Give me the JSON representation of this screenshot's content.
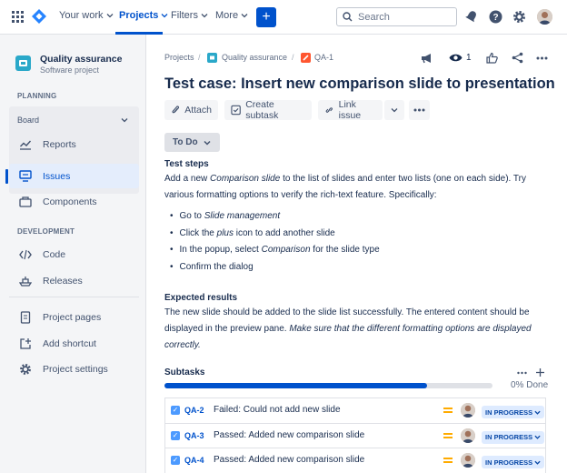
{
  "topnav": {
    "your_work": "Your work",
    "projects": "Projects",
    "filters": "Filters",
    "more": "More",
    "create": "+",
    "search_placeholder": "Search"
  },
  "sidebar": {
    "project_name": "Quality assurance",
    "project_type": "Software project",
    "planning_label": "PLANNING",
    "board_label": "Board",
    "development_label": "DEVELOPMENT",
    "items": [
      {
        "label": "Reports",
        "icon": "chart-line-icon"
      },
      {
        "label": "Issues",
        "icon": "issues-icon",
        "active": true
      },
      {
        "label": "Components",
        "icon": "components-icon"
      },
      {
        "label": "Code",
        "icon": "code-icon"
      },
      {
        "label": "Releases",
        "icon": "ship-icon"
      },
      {
        "label": "Project pages",
        "icon": "page-icon"
      },
      {
        "label": "Add shortcut",
        "icon": "add-shortcut-icon"
      },
      {
        "label": "Project settings",
        "icon": "gear-icon"
      }
    ]
  },
  "breadcrumb": {
    "projects": "Projects",
    "project": "Quality assurance",
    "issue_key": "QA-1",
    "watchers": "1"
  },
  "issue": {
    "title": "Test case: Insert new comparison slide to presentation",
    "toolbar": {
      "attach": "Attach",
      "create_subtask": "Create subtask",
      "link_issue": "Link issue"
    },
    "status": "To Do",
    "test_steps_heading": "Test steps",
    "test_steps_intro_a": "Add a new ",
    "test_steps_intro_em": "Comparison slide",
    "test_steps_intro_b": " to the list of slides and enter two lists (one on each side). Try various formatting options to verify the rich-text feature. Specifically:",
    "steps": [
      {
        "pre": "Go to ",
        "em": "Slide management",
        "post": ""
      },
      {
        "pre": "Click the ",
        "em": "plus",
        "post": " icon to add another slide"
      },
      {
        "pre": "In the popup, select ",
        "em": "Comparison",
        "post": " for the slide type"
      },
      {
        "pre": "Confirm the dialog",
        "em": "",
        "post": ""
      }
    ],
    "expected_heading": "Expected results",
    "expected_a": "The new slide should be added to the slide list successfully. The entered content should be displayed in the preview pane. ",
    "expected_em": "Make sure that the different formatting options are displayed correctly."
  },
  "subtasks": {
    "heading": "Subtasks",
    "progress_fraction": 0.8,
    "progress_label": "0% Done",
    "rows": [
      {
        "key": "QA-2",
        "summary": "Failed: Could not add new slide",
        "status": "IN PROGRESS"
      },
      {
        "key": "QA-3",
        "summary": "Passed: Added new comparison slide",
        "status": "IN PROGRESS"
      },
      {
        "key": "QA-4",
        "summary": "Passed: Added new comparison slide",
        "status": "IN PROGRESS"
      }
    ]
  },
  "colors": {
    "brand_blue": "#0052cc",
    "sidebar_bg": "#f4f5f7",
    "status_bg": "#deebff",
    "priority_medium": "#ffab00"
  }
}
